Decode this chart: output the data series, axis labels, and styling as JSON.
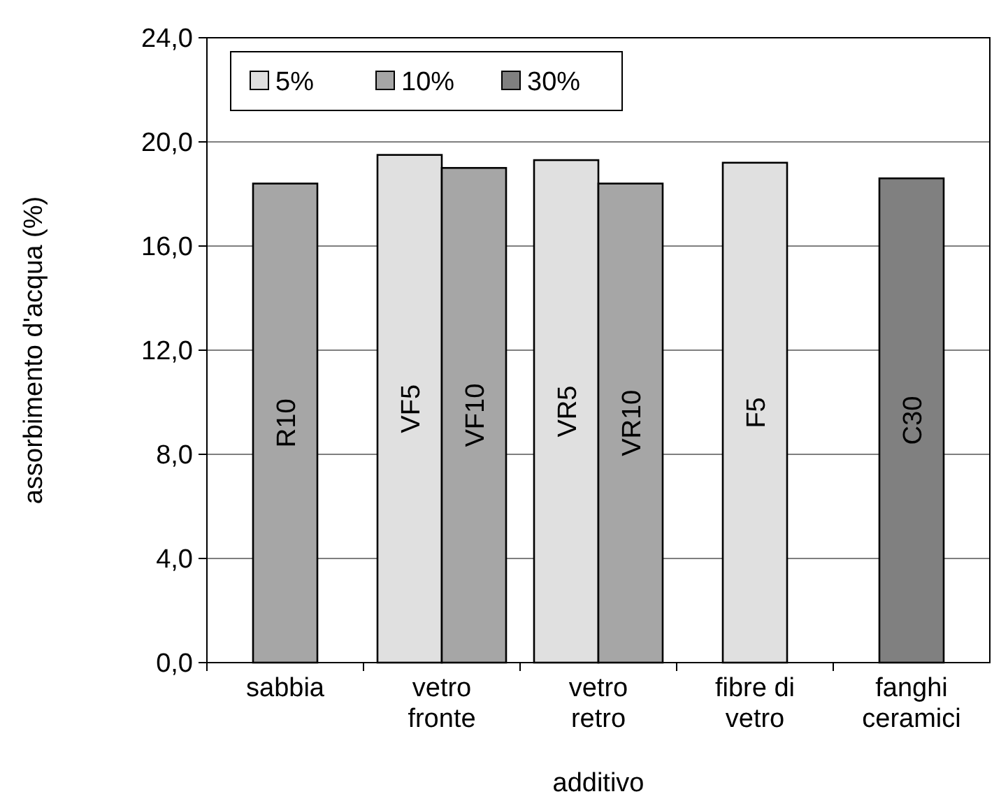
{
  "chart_data": {
    "type": "bar",
    "xlabel": "additivo",
    "ylabel": "assorbimento d'acqua (%)",
    "categories": [
      "sabbia",
      "vetro\nfronte",
      "vetro\nretro",
      "fibre di\nvetro",
      "fanghi\nceramici"
    ],
    "series": [
      {
        "name": "5%",
        "color": "#e0e0e0",
        "values": [
          null,
          19.5,
          19.3,
          19.2,
          null
        ],
        "value_labels": [
          null,
          "VF5",
          "VR5",
          "F5",
          null
        ]
      },
      {
        "name": "10%",
        "color": "#a6a6a6",
        "values": [
          18.4,
          19.0,
          18.4,
          null,
          null
        ],
        "value_labels": [
          "R10",
          "VF10",
          "VR10",
          null,
          null
        ]
      },
      {
        "name": "30%",
        "color": "#808080",
        "values": [
          null,
          null,
          null,
          null,
          18.6
        ],
        "value_labels": [
          null,
          null,
          null,
          null,
          "C30"
        ]
      }
    ],
    "ylim": [
      0,
      24
    ],
    "yticks": [
      {
        "value": 0,
        "label": "0,0"
      },
      {
        "value": 4,
        "label": "4,0"
      },
      {
        "value": 8,
        "label": "8,0"
      },
      {
        "value": 12,
        "label": "12,0"
      },
      {
        "value": 16,
        "label": "16,0"
      },
      {
        "value": 20,
        "label": "20,0"
      },
      {
        "value": 24,
        "label": "24,0"
      }
    ],
    "grid": "y",
    "legend": "top left"
  }
}
